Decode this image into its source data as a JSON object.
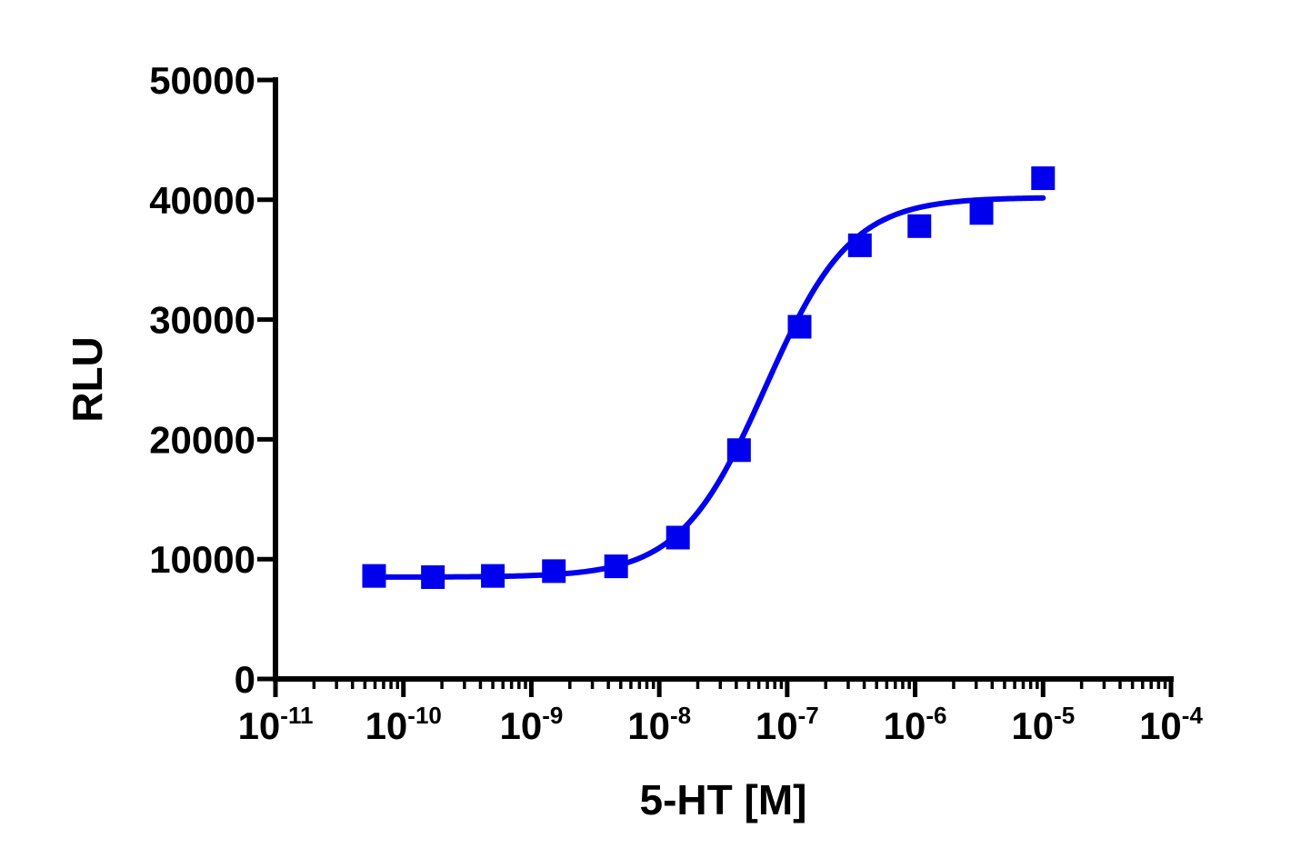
{
  "chart_data": {
    "type": "scatter",
    "title": "",
    "xlabel": "5-HT [M]",
    "ylabel": "RLU",
    "x_scale": "log10",
    "xlim": [
      1e-11,
      0.0001
    ],
    "ylim": [
      0,
      50000
    ],
    "grid": false,
    "legend": "none",
    "y_ticks": [
      {
        "value": 0,
        "label": "0"
      },
      {
        "value": 10000,
        "label": "10000"
      },
      {
        "value": 20000,
        "label": "20000"
      },
      {
        "value": 30000,
        "label": "30000"
      },
      {
        "value": 40000,
        "label": "40000"
      },
      {
        "value": 50000,
        "label": "50000"
      }
    ],
    "x_ticks": [
      {
        "value": 1e-11,
        "base": "10",
        "exp": "-11"
      },
      {
        "value": 1e-10,
        "base": "10",
        "exp": "-10"
      },
      {
        "value": 1e-09,
        "base": "10",
        "exp": "-9"
      },
      {
        "value": 1e-08,
        "base": "10",
        "exp": "-8"
      },
      {
        "value": 1e-07,
        "base": "10",
        "exp": "-7"
      },
      {
        "value": 1e-06,
        "base": "10",
        "exp": "-6"
      },
      {
        "value": 1e-05,
        "base": "10",
        "exp": "-5"
      },
      {
        "value": 0.0001,
        "base": "10",
        "exp": "-4"
      }
    ],
    "series": [
      {
        "name": "",
        "color": "#0000ee",
        "marker": "square",
        "points": [
          {
            "x": 5.9e-11,
            "y": 8600
          },
          {
            "x": 1.7e-10,
            "y": 8500
          },
          {
            "x": 5e-10,
            "y": 8600
          },
          {
            "x": 1.5e-09,
            "y": 9000
          },
          {
            "x": 4.6e-09,
            "y": 9400
          },
          {
            "x": 1.4e-08,
            "y": 11800
          },
          {
            "x": 4.2e-08,
            "y": 19100
          },
          {
            "x": 1.25e-07,
            "y": 29400
          },
          {
            "x": 3.7e-07,
            "y": 36200
          },
          {
            "x": 1.08e-06,
            "y": 37800
          },
          {
            "x": 3.3e-06,
            "y": 38900
          },
          {
            "x": 1e-05,
            "y": 41800
          }
        ],
        "fit": {
          "model": "four-parameter logistic",
          "bottom": 8500,
          "top": 40200,
          "log_ec50": -7.17,
          "hill": 1.3
        }
      }
    ]
  }
}
